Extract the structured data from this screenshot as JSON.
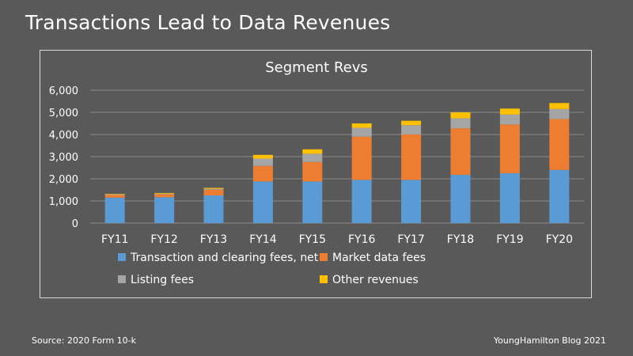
{
  "slide": {
    "title": "Transactions Lead to Data Revenues",
    "source": "Source: 2020 Form 10-k",
    "credit": "YoungHamilton Blog 2021"
  },
  "chart_data": {
    "type": "bar",
    "stacked": true,
    "title": "Segment Revs",
    "categories": [
      "FY11",
      "FY12",
      "FY13",
      "FY14",
      "FY15",
      "FY16",
      "FY17",
      "FY18",
      "FY19",
      "FY20"
    ],
    "ylim": [
      0,
      6000
    ],
    "yticks": [
      0,
      1000,
      2000,
      3000,
      4000,
      5000,
      6000
    ],
    "ytick_labels": [
      "0",
      "1,000",
      "2,000",
      "3,000",
      "4,000",
      "5,000",
      "6,000"
    ],
    "grid": true,
    "legend_position": "bottom",
    "series": [
      {
        "name": "Transaction and clearing fees, net",
        "color": "#5b9bd5",
        "values": [
          1150,
          1170,
          1250,
          1880,
          1880,
          1950,
          1950,
          2180,
          2250,
          2400
        ]
      },
      {
        "name": "Market data fees",
        "color": "#ed7d31",
        "values": [
          120,
          130,
          260,
          700,
          880,
          1950,
          2050,
          2100,
          2200,
          2300
        ]
      },
      {
        "name": "Listing fees",
        "color": "#a5a5a5",
        "values": [
          30,
          30,
          40,
          330,
          370,
          400,
          420,
          450,
          450,
          450
        ]
      },
      {
        "name": "Other revenues",
        "color": "#ffc000",
        "values": [
          20,
          30,
          40,
          170,
          200,
          200,
          200,
          270,
          270,
          270
        ]
      }
    ]
  }
}
